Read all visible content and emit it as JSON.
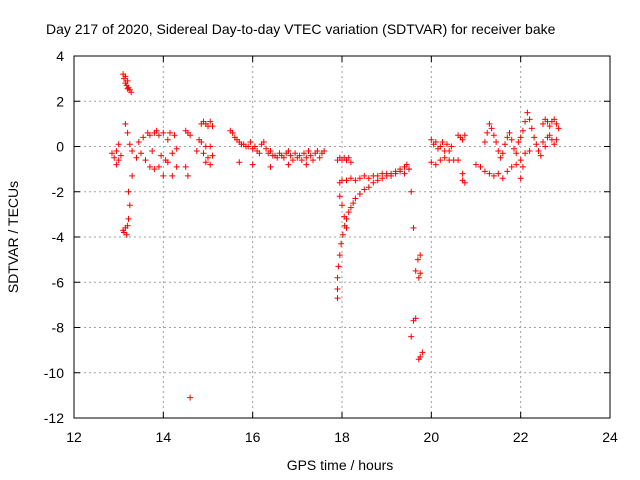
{
  "chart_data": {
    "type": "scatter",
    "title": "Day 217 of 2020, Sidereal Day-to-day VTEC variation (SDTVAR) for receiver bake",
    "xlabel": "GPS time / hours",
    "ylabel": "SDTVAR / TECUs",
    "xlim": [
      12,
      24
    ],
    "ylim": [
      -12,
      4
    ],
    "xticks": [
      "12",
      "14",
      "16",
      "18",
      "20",
      "22",
      "24"
    ],
    "yticks": [
      "-12",
      "-10",
      "-8",
      "-6",
      "-4",
      "-2",
      "0",
      "2",
      "4"
    ],
    "grid": true,
    "marker": "+",
    "color": "#ff0000",
    "series": [
      {
        "name": "SDTVAR",
        "points": [
          [
            12.85,
            -0.3
          ],
          [
            12.9,
            -0.5
          ],
          [
            12.95,
            -0.2
          ],
          [
            13.0,
            -0.6
          ],
          [
            13.05,
            -0.4
          ],
          [
            13.0,
            0.1
          ],
          [
            12.95,
            -0.8
          ],
          [
            13.1,
            3.2
          ],
          [
            13.12,
            3.0
          ],
          [
            13.15,
            2.8
          ],
          [
            13.18,
            2.7
          ],
          [
            13.2,
            2.9
          ],
          [
            13.22,
            2.6
          ],
          [
            13.25,
            2.5
          ],
          [
            13.28,
            2.4
          ],
          [
            13.15,
            3.1
          ],
          [
            13.2,
            2.55
          ],
          [
            13.1,
            -3.7
          ],
          [
            13.12,
            -3.8
          ],
          [
            13.15,
            -3.6
          ],
          [
            13.18,
            -3.9
          ],
          [
            13.2,
            -3.5
          ],
          [
            13.15,
            1.0
          ],
          [
            13.2,
            0.6
          ],
          [
            13.22,
            -2.0
          ],
          [
            13.25,
            -2.6
          ],
          [
            13.22,
            -3.2
          ],
          [
            13.3,
            -1.3
          ],
          [
            13.25,
            0.1
          ],
          [
            13.3,
            -0.2
          ],
          [
            13.4,
            -0.5
          ],
          [
            13.45,
            0.2
          ],
          [
            13.5,
            -0.3
          ],
          [
            13.55,
            0.4
          ],
          [
            13.6,
            -0.6
          ],
          [
            13.65,
            0.6
          ],
          [
            13.7,
            0.5
          ],
          [
            13.75,
            -0.2
          ],
          [
            13.8,
            0.6
          ],
          [
            13.85,
            0.7
          ],
          [
            13.9,
            0.5
          ],
          [
            13.95,
            -0.4
          ],
          [
            14.0,
            0.6
          ],
          [
            14.05,
            -0.6
          ],
          [
            14.1,
            0.3
          ],
          [
            14.15,
            0.6
          ],
          [
            14.2,
            -0.3
          ],
          [
            14.25,
            0.5
          ],
          [
            14.3,
            -0.9
          ],
          [
            14.1,
            -0.7
          ],
          [
            14.2,
            -1.3
          ],
          [
            14.3,
            -0.1
          ],
          [
            13.8,
            -1.0
          ],
          [
            13.9,
            -0.9
          ],
          [
            14.0,
            -1.3
          ],
          [
            13.7,
            -0.9
          ],
          [
            14.5,
            0.7
          ],
          [
            14.55,
            0.6
          ],
          [
            14.6,
            0.5
          ],
          [
            14.5,
            -0.9
          ],
          [
            14.55,
            -1.3
          ],
          [
            14.6,
            -11.1
          ],
          [
            14.75,
            -0.2
          ],
          [
            14.8,
            0.3
          ],
          [
            14.85,
            0.2
          ],
          [
            14.9,
            -0.3
          ],
          [
            14.95,
            0.0
          ],
          [
            14.85,
            1.0
          ],
          [
            14.9,
            1.1
          ],
          [
            14.95,
            1.0
          ],
          [
            15.0,
            0.9
          ],
          [
            15.05,
            1.1
          ],
          [
            15.1,
            0.9
          ],
          [
            15.05,
            0.0
          ],
          [
            15.0,
            -0.5
          ],
          [
            15.05,
            -0.8
          ],
          [
            14.95,
            -0.7
          ],
          [
            15.1,
            -0.4
          ],
          [
            15.5,
            0.7
          ],
          [
            15.55,
            0.6
          ],
          [
            15.6,
            0.4
          ],
          [
            15.65,
            0.3
          ],
          [
            15.7,
            0.2
          ],
          [
            15.75,
            0.1
          ],
          [
            15.8,
            0.1
          ],
          [
            15.85,
            0.0
          ],
          [
            15.9,
            0.0
          ],
          [
            15.95,
            0.2
          ],
          [
            16.0,
            -0.1
          ],
          [
            16.05,
            0.0
          ],
          [
            16.1,
            -0.2
          ],
          [
            16.15,
            -0.3
          ],
          [
            16.2,
            0.1
          ],
          [
            16.25,
            0.2
          ],
          [
            16.3,
            -0.1
          ],
          [
            16.35,
            -0.3
          ],
          [
            16.4,
            -0.2
          ],
          [
            16.45,
            -0.4
          ],
          [
            16.5,
            -0.4
          ],
          [
            16.55,
            -0.5
          ],
          [
            16.6,
            -0.3
          ],
          [
            16.65,
            -0.4
          ],
          [
            16.7,
            -0.5
          ],
          [
            16.75,
            -0.3
          ],
          [
            16.8,
            -0.2
          ],
          [
            16.85,
            -0.4
          ],
          [
            16.9,
            -0.6
          ],
          [
            16.95,
            -0.3
          ],
          [
            17.0,
            -0.5
          ],
          [
            17.05,
            -0.4
          ],
          [
            17.1,
            -0.6
          ],
          [
            17.15,
            -0.3
          ],
          [
            17.2,
            -0.5
          ],
          [
            17.25,
            -0.2
          ],
          [
            17.3,
            -0.4
          ],
          [
            17.35,
            -0.6
          ],
          [
            17.4,
            -0.3
          ],
          [
            17.45,
            -0.2
          ],
          [
            17.5,
            -0.5
          ],
          [
            17.55,
            -0.3
          ],
          [
            17.6,
            -0.2
          ],
          [
            15.7,
            -0.7
          ],
          [
            16.0,
            -0.8
          ],
          [
            16.4,
            -0.9
          ],
          [
            16.8,
            -0.8
          ],
          [
            17.2,
            -0.8
          ],
          [
            17.9,
            -0.6
          ],
          [
            17.95,
            -0.5
          ],
          [
            18.0,
            -0.6
          ],
          [
            18.05,
            -0.5
          ],
          [
            18.1,
            -0.6
          ],
          [
            18.15,
            -0.5
          ],
          [
            18.2,
            -0.7
          ],
          [
            17.9,
            -6.7
          ],
          [
            17.9,
            -6.3
          ],
          [
            17.9,
            -5.8
          ],
          [
            17.92,
            -5.3
          ],
          [
            17.95,
            -4.8
          ],
          [
            17.98,
            -4.3
          ],
          [
            18.02,
            -3.9
          ],
          [
            18.06,
            -3.5
          ],
          [
            18.1,
            -3.2
          ],
          [
            18.15,
            -2.9
          ],
          [
            18.2,
            -2.7
          ],
          [
            18.25,
            -2.5
          ],
          [
            18.3,
            -2.3
          ],
          [
            18.4,
            -2.1
          ],
          [
            18.5,
            -1.9
          ],
          [
            18.6,
            -1.8
          ],
          [
            18.7,
            -1.6
          ],
          [
            18.8,
            -1.5
          ],
          [
            18.9,
            -1.4
          ],
          [
            19.0,
            -1.3
          ],
          [
            19.1,
            -1.2
          ],
          [
            19.2,
            -1.1
          ],
          [
            19.3,
            -1.0
          ],
          [
            19.4,
            -0.9
          ],
          [
            19.5,
            -1.0
          ],
          [
            17.95,
            -1.6
          ],
          [
            18.0,
            -1.5
          ],
          [
            18.1,
            -1.5
          ],
          [
            18.2,
            -1.4
          ],
          [
            18.3,
            -1.5
          ],
          [
            18.4,
            -1.4
          ],
          [
            18.5,
            -1.3
          ],
          [
            18.6,
            -1.4
          ],
          [
            18.7,
            -1.3
          ],
          [
            18.8,
            -1.3
          ],
          [
            18.9,
            -1.2
          ],
          [
            19.0,
            -1.2
          ],
          [
            19.1,
            -1.3
          ],
          [
            19.2,
            -1.2
          ],
          [
            19.3,
            -1.1
          ],
          [
            19.4,
            -1.2
          ],
          [
            19.45,
            -0.8
          ],
          [
            19.5,
            -1.0
          ],
          [
            17.95,
            -2.2
          ],
          [
            18.0,
            -2.6
          ],
          [
            18.05,
            -3.1
          ],
          [
            18.1,
            -3.6
          ],
          [
            19.55,
            -2.0
          ],
          [
            19.6,
            -3.6
          ],
          [
            19.65,
            -5.5
          ],
          [
            19.7,
            -5.0
          ],
          [
            19.75,
            -4.8
          ],
          [
            19.72,
            -5.8
          ],
          [
            19.75,
            -5.6
          ],
          [
            19.6,
            -7.7
          ],
          [
            19.65,
            -7.6
          ],
          [
            19.55,
            -8.4
          ],
          [
            19.75,
            -9.3
          ],
          [
            19.8,
            -9.1
          ],
          [
            19.72,
            -9.4
          ],
          [
            20.0,
            0.3
          ],
          [
            20.05,
            0.1
          ],
          [
            20.1,
            0.2
          ],
          [
            20.15,
            -0.1
          ],
          [
            20.2,
            0.0
          ],
          [
            20.25,
            0.2
          ],
          [
            20.3,
            -0.2
          ],
          [
            20.35,
            0.1
          ],
          [
            20.4,
            -0.2
          ],
          [
            20.45,
            0.0
          ],
          [
            20.0,
            -0.7
          ],
          [
            20.1,
            -0.8
          ],
          [
            20.2,
            -0.6
          ],
          [
            20.3,
            -0.5
          ],
          [
            20.4,
            -0.6
          ],
          [
            20.5,
            -0.6
          ],
          [
            20.6,
            -0.6
          ],
          [
            20.6,
            0.5
          ],
          [
            20.65,
            0.4
          ],
          [
            20.7,
            0.3
          ],
          [
            20.75,
            0.5
          ],
          [
            20.7,
            -1.2
          ],
          [
            20.75,
            -1.6
          ],
          [
            20.7,
            -1.5
          ],
          [
            21.0,
            -0.8
          ],
          [
            21.1,
            -0.9
          ],
          [
            21.2,
            -1.1
          ],
          [
            21.3,
            -1.2
          ],
          [
            21.4,
            -1.3
          ],
          [
            21.5,
            -1.2
          ],
          [
            21.6,
            -1.4
          ],
          [
            21.7,
            -1.1
          ],
          [
            21.8,
            -0.9
          ],
          [
            21.9,
            -0.8
          ],
          [
            21.2,
            0.2
          ],
          [
            21.25,
            0.6
          ],
          [
            21.3,
            1.0
          ],
          [
            21.35,
            0.8
          ],
          [
            21.4,
            0.5
          ],
          [
            21.45,
            0.2
          ],
          [
            21.5,
            -0.2
          ],
          [
            21.55,
            -0.5
          ],
          [
            21.6,
            -0.3
          ],
          [
            21.65,
            0.1
          ],
          [
            21.7,
            0.4
          ],
          [
            21.75,
            0.6
          ],
          [
            21.8,
            0.3
          ],
          [
            21.85,
            -0.1
          ],
          [
            21.9,
            -0.3
          ],
          [
            21.95,
            0.2
          ],
          [
            22.0,
            0.4
          ],
          [
            22.05,
            0.7
          ],
          [
            22.1,
            1.1
          ],
          [
            22.15,
            1.5
          ],
          [
            22.2,
            1.2
          ],
          [
            22.25,
            0.8
          ],
          [
            22.3,
            0.4
          ],
          [
            22.35,
            0.1
          ],
          [
            22.4,
            -0.2
          ],
          [
            22.45,
            -0.4
          ],
          [
            22.0,
            -0.6
          ],
          [
            22.05,
            -0.9
          ],
          [
            22.0,
            -1.4
          ],
          [
            22.1,
            -0.3
          ],
          [
            22.2,
            -0.2
          ],
          [
            22.5,
            1.0
          ],
          [
            22.55,
            1.2
          ],
          [
            22.6,
            1.1
          ],
          [
            22.65,
            0.9
          ],
          [
            22.7,
            1.1
          ],
          [
            22.75,
            1.2
          ],
          [
            22.8,
            1.0
          ],
          [
            22.85,
            0.8
          ],
          [
            22.5,
            0.2
          ],
          [
            22.55,
            0.0
          ],
          [
            22.6,
            0.4
          ],
          [
            22.65,
            0.5
          ],
          [
            22.7,
            0.3
          ],
          [
            22.75,
            0.1
          ],
          [
            22.8,
            0.3
          ]
        ]
      }
    ]
  }
}
